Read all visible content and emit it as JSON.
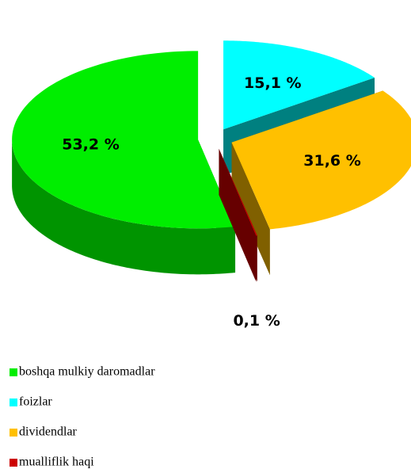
{
  "chart_data": {
    "type": "pie",
    "categories": [
      "boshqa mulkiy daromadlar",
      "foizlar",
      "dividendlar",
      "mualliflik haqi"
    ],
    "values": [
      53.2,
      15.1,
      31.6,
      0.1
    ],
    "value_labels": [
      "53,2 %",
      "15,1 %",
      "31,6 %",
      "0,1 %"
    ],
    "colors": [
      "#00ee00",
      "#00ffff",
      "#ffc000",
      "#cc0000"
    ],
    "legend": "bottom-left"
  }
}
